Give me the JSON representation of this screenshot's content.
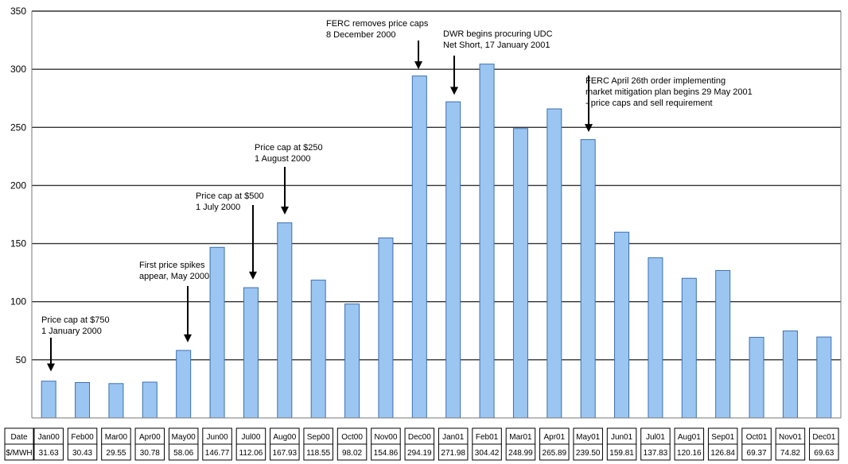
{
  "chart_data": {
    "type": "bar",
    "title": "",
    "xlabel": "",
    "ylabel": "",
    "ylim": [
      0,
      350
    ],
    "yticks": [
      50,
      100,
      150,
      200,
      250,
      300,
      350
    ],
    "grid": true,
    "bar_color": "#9cc6f2",
    "bar_edge_color": "#3d6fb0",
    "categories": [
      "Jan00",
      "Feb00",
      "Mar00",
      "Apr00",
      "May00",
      "Jun00",
      "Jul00",
      "Aug00",
      "Sep00",
      "Oct00",
      "Nov00",
      "Dec00",
      "Jan01",
      "Feb01",
      "Mar01",
      "Apr01",
      "May01",
      "Jun01",
      "Jul01",
      "Aug01",
      "Sep01",
      "Oct01",
      "Nov01",
      "Dec01"
    ],
    "values": [
      31.63,
      30.43,
      29.55,
      30.78,
      58.06,
      146.77,
      112.06,
      167.93,
      118.55,
      98.02,
      154.86,
      294.19,
      271.98,
      304.42,
      248.99,
      265.89,
      239.5,
      159.81,
      137.83,
      120.16,
      126.84,
      69.37,
      74.82,
      69.63
    ],
    "value_labels": [
      "31.63",
      "30.43",
      "29.55",
      "30.78",
      "58.06",
      "146.77",
      "112.06",
      "167.93",
      "118.55",
      "98.02",
      "154.86",
      "294.19",
      "271.98",
      "304.42",
      "248.99",
      "265.89",
      "239.50",
      "159.81",
      "137.83",
      "120.16",
      "126.84",
      "69.37",
      "74.82",
      "69.63"
    ],
    "table": {
      "row1_header": "Date",
      "row2_header": "$/MWH"
    },
    "annotations": [
      {
        "lines": [
          "Price cap at $750",
          "1 January 2000"
        ],
        "target": "Jan00",
        "at_value": 40
      },
      {
        "lines": [
          "First price spikes",
          "appear, May 2000"
        ],
        "target": "May00",
        "at_value": 65
      },
      {
        "lines": [
          "Price cap at $500",
          "1 July 2000"
        ],
        "target": "Jul00",
        "at_value": 119
      },
      {
        "lines": [
          "Price cap at $250",
          "1 August 2000"
        ],
        "target": "Aug00",
        "at_value": 175
      },
      {
        "lines": [
          "FERC removes price caps",
          "8 December 2000"
        ],
        "target": "Dec00",
        "at_value": 300
      },
      {
        "lines": [
          "DWR begins procuring UDC",
          "Net Short, 17 January 2001"
        ],
        "target": "Jan01",
        "at_value": 278
      },
      {
        "lines": [
          "FERC April 26th order implementing",
          "market mitigation plan begins 29 May 2001",
          " - price caps and sell requirement"
        ],
        "target": "May01",
        "at_value": 246
      }
    ]
  }
}
